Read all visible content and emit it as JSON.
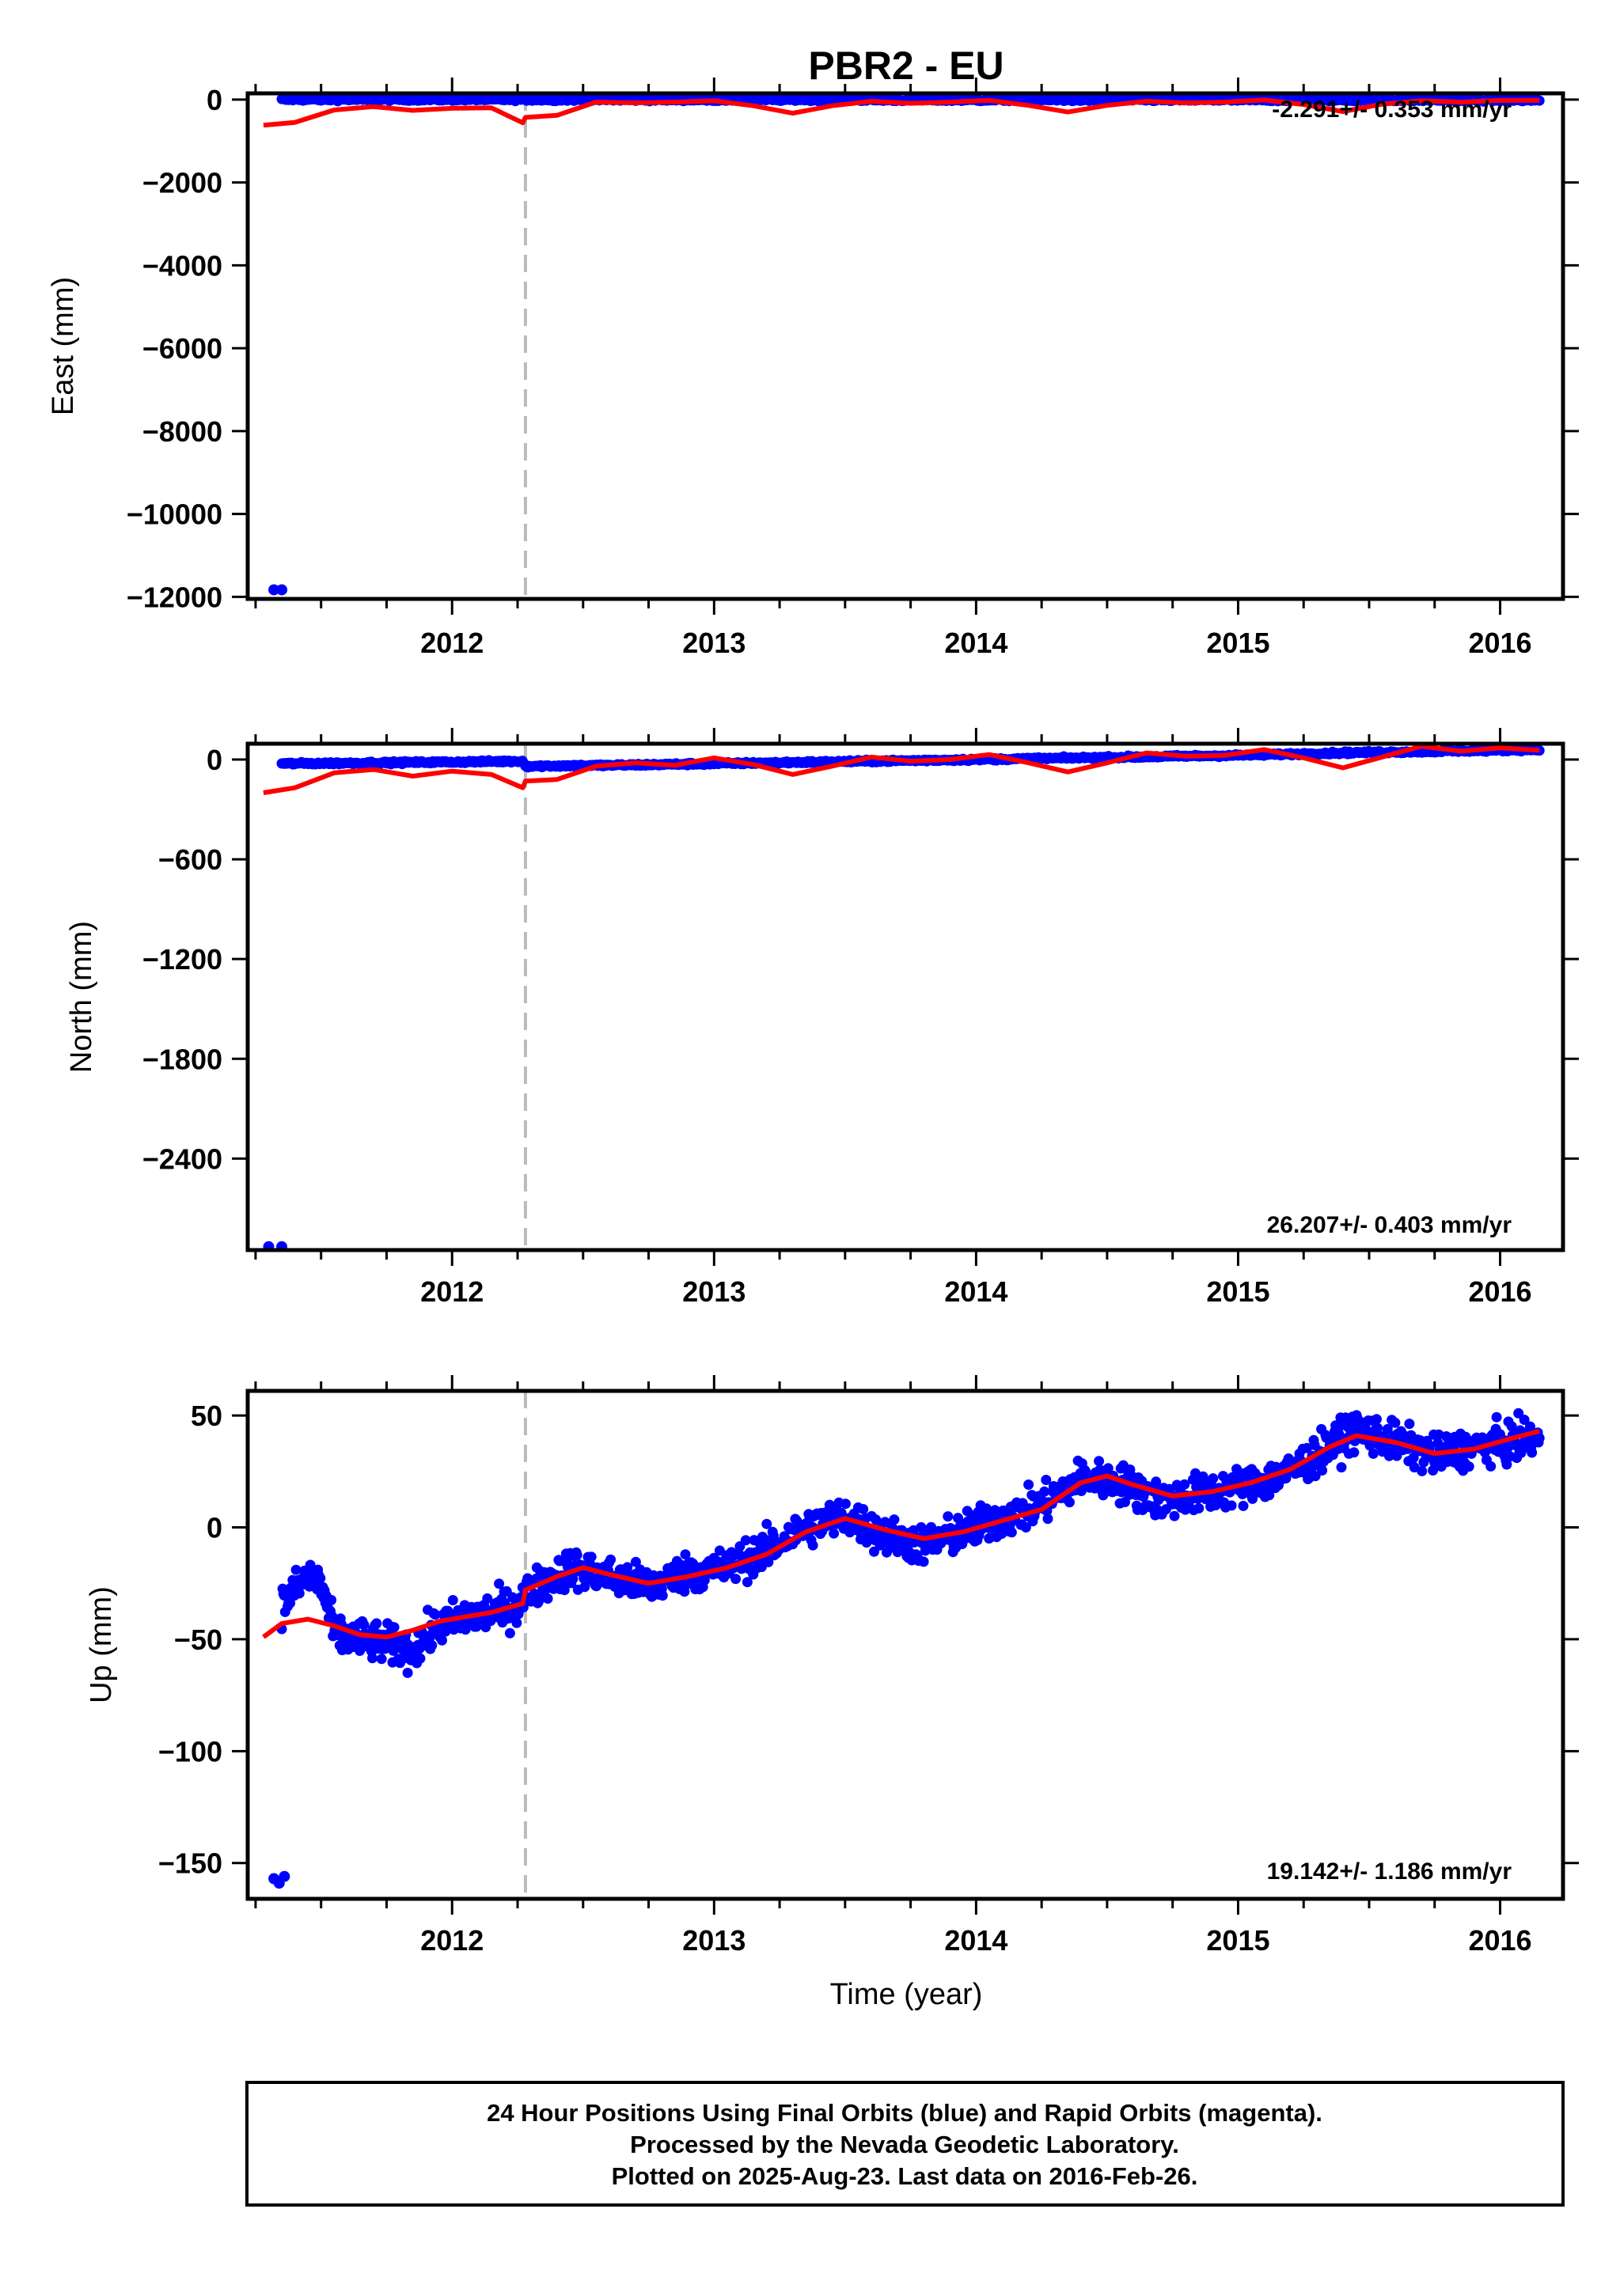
{
  "title": "PBR2 - EU",
  "xlabel": "Time (year)",
  "x_tick_labels": [
    "2012",
    "2013",
    "2014",
    "2015",
    "2016"
  ],
  "footer": {
    "line1": "24 Hour Positions Using Final Orbits (blue) and Rapid Orbits (magenta).",
    "line2": "Processed by the Nevada Geodetic Laboratory.",
    "line3": "Plotted on 2025-Aug-23. Last data on 2016-Feb-26."
  },
  "colors": {
    "data_points": "#0000ff",
    "model_line": "#ff0000",
    "event_line": "#bbbbbb"
  },
  "chart_data": [
    {
      "type": "scatter",
      "panel": "east",
      "ylabel": "East (mm)",
      "xlim": [
        2011.22,
        2016.24
      ],
      "ylim": [
        -12050,
        150
      ],
      "y_ticks": [
        0,
        -2000,
        -4000,
        -6000,
        -8000,
        -10000,
        -12000
      ],
      "y_tick_labels": [
        "0",
        "−2000",
        "−4000",
        "−6000",
        "−8000",
        "−10000",
        "−12000"
      ],
      "rate_text": "-2.291+/- 0.353 mm/yr",
      "event_line_x": 2012.28,
      "outlier_points": [
        [
          2011.32,
          -11830
        ],
        [
          2011.35,
          -11830
        ]
      ],
      "series": [
        {
          "role": "data",
          "x": [
            2011.35,
            2011.6,
            2011.9,
            2012.2,
            2012.5,
            2012.8,
            2013.1,
            2013.4,
            2013.7,
            2014.0,
            2014.3,
            2014.6,
            2014.9,
            2015.2,
            2015.5,
            2015.8,
            2016.15
          ],
          "y": [
            0,
            0,
            0,
            0,
            -5,
            -5,
            -5,
            -5,
            -10,
            -10,
            -10,
            -10,
            -10,
            -10,
            -15,
            -15,
            -15
          ]
        },
        {
          "role": "model",
          "x": [
            2011.28,
            2011.4,
            2011.55,
            2011.7,
            2011.85,
            2012.0,
            2012.15,
            2012.27,
            2012.28,
            2012.4,
            2012.55,
            2012.7,
            2012.85,
            2013.0,
            2013.15,
            2013.3,
            2013.45,
            2013.6,
            2013.75,
            2013.9,
            2014.05,
            2014.2,
            2014.35,
            2014.5,
            2014.65,
            2014.8,
            2014.95,
            2015.1,
            2015.25,
            2015.4,
            2015.55,
            2015.7,
            2015.85,
            2016.0,
            2016.15
          ],
          "y": [
            -620,
            -550,
            -250,
            -170,
            -260,
            -210,
            -200,
            -560,
            -430,
            -380,
            -60,
            -80,
            -60,
            -30,
            -150,
            -330,
            -150,
            -40,
            -90,
            -60,
            -20,
            -140,
            -300,
            -140,
            -40,
            -80,
            -60,
            -10,
            -120,
            -290,
            -110,
            -30,
            -60,
            -20,
            -20
          ]
        }
      ]
    },
    {
      "type": "scatter",
      "panel": "north",
      "ylabel": "North (mm)",
      "xlim": [
        2011.22,
        2016.24
      ],
      "ylim": [
        -2950,
        95
      ],
      "y_ticks": [
        0,
        -600,
        -1200,
        -1800,
        -2400
      ],
      "y_tick_labels": [
        "0",
        "−600",
        "−1200",
        "−1800",
        "−2400"
      ],
      "rate_text": "26.207+/- 0.403 mm/yr",
      "event_line_x": 2012.28,
      "outlier_points": [
        [
          2011.3,
          -2930
        ],
        [
          2011.35,
          -2930
        ]
      ],
      "series": [
        {
          "role": "data",
          "x": [
            2011.35,
            2011.7,
            2012.0,
            2012.27,
            2012.28,
            2012.6,
            2013.0,
            2013.4,
            2013.8,
            2014.2,
            2014.6,
            2015.0,
            2015.4,
            2015.8,
            2016.15
          ],
          "y": [
            -25,
            -20,
            -15,
            -10,
            -40,
            -35,
            -25,
            -15,
            -5,
            5,
            15,
            25,
            40,
            50,
            60
          ]
        },
        {
          "role": "model",
          "x": [
            2011.28,
            2011.4,
            2011.55,
            2011.7,
            2011.85,
            2012.0,
            2012.15,
            2012.27,
            2012.28,
            2012.4,
            2012.55,
            2012.7,
            2012.85,
            2013.0,
            2013.15,
            2013.3,
            2013.45,
            2013.6,
            2013.75,
            2013.9,
            2014.05,
            2014.2,
            2014.35,
            2014.5,
            2014.65,
            2014.8,
            2014.95,
            2015.1,
            2015.25,
            2015.4,
            2015.55,
            2015.7,
            2015.85,
            2016.0,
            2016.15
          ],
          "y": [
            -200,
            -170,
            -80,
            -60,
            -100,
            -70,
            -90,
            -170,
            -130,
            -120,
            -40,
            -20,
            -35,
            10,
            -30,
            -90,
            -40,
            15,
            -10,
            0,
            30,
            -20,
            -75,
            -20,
            40,
            20,
            25,
            60,
            10,
            -50,
            15,
            80,
            50,
            70,
            55
          ]
        }
      ]
    },
    {
      "type": "scatter",
      "panel": "up",
      "ylabel": "Up (mm)",
      "xlim": [
        2011.22,
        2016.24
      ],
      "ylim": [
        -166,
        61
      ],
      "y_ticks": [
        50,
        0,
        -50,
        -100,
        -150
      ],
      "y_tick_labels": [
        "50",
        "0",
        "−50",
        "−100",
        "−150"
      ],
      "rate_text": "19.142+/- 1.186 mm/yr",
      "event_line_x": 2012.28,
      "outlier_points": [
        [
          2011.32,
          -157
        ],
        [
          2011.34,
          -159
        ],
        [
          2011.36,
          -156
        ]
      ],
      "series": [
        {
          "role": "data",
          "x": [
            2011.35,
            2011.4,
            2011.45,
            2011.5,
            2011.55,
            2011.65,
            2011.75,
            2011.85,
            2011.95,
            2012.05,
            2012.15,
            2012.25,
            2012.3,
            2012.45,
            2012.6,
            2012.75,
            2012.9,
            2013.05,
            2013.2,
            2013.35,
            2013.5,
            2013.65,
            2013.8,
            2013.95,
            2014.1,
            2014.25,
            2014.4,
            2014.55,
            2014.7,
            2014.85,
            2015.0,
            2015.15,
            2015.3,
            2015.45,
            2015.6,
            2015.75,
            2015.9,
            2016.05,
            2016.15
          ],
          "y": [
            -35,
            -28,
            -22,
            -25,
            -48,
            -50,
            -52,
            -55,
            -44,
            -40,
            -38,
            -35,
            -28,
            -18,
            -22,
            -26,
            -20,
            -18,
            -10,
            0,
            5,
            -4,
            -8,
            -2,
            4,
            10,
            22,
            20,
            12,
            15,
            18,
            22,
            32,
            44,
            38,
            32,
            36,
            38,
            40
          ]
        },
        {
          "role": "model",
          "x": [
            2011.28,
            2011.35,
            2011.45,
            2011.55,
            2011.65,
            2011.75,
            2011.85,
            2011.95,
            2012.05,
            2012.15,
            2012.27,
            2012.28,
            2012.4,
            2012.5,
            2012.6,
            2012.75,
            2012.9,
            2013.05,
            2013.2,
            2013.35,
            2013.5,
            2013.65,
            2013.8,
            2013.95,
            2014.1,
            2014.25,
            2014.4,
            2014.5,
            2014.6,
            2014.75,
            2014.9,
            2015.05,
            2015.2,
            2015.35,
            2015.45,
            2015.6,
            2015.75,
            2015.9,
            2016.05,
            2016.15
          ],
          "y": [
            -49,
            -43,
            -41,
            -44,
            -48,
            -49,
            -46,
            -42,
            -40,
            -38,
            -34,
            -28,
            -22,
            -18,
            -21,
            -25,
            -22,
            -18,
            -12,
            -2,
            4,
            -1,
            -5,
            -2,
            3,
            8,
            20,
            23,
            19,
            14,
            16,
            20,
            26,
            36,
            41,
            38,
            33,
            35,
            40,
            43
          ]
        }
      ]
    }
  ]
}
